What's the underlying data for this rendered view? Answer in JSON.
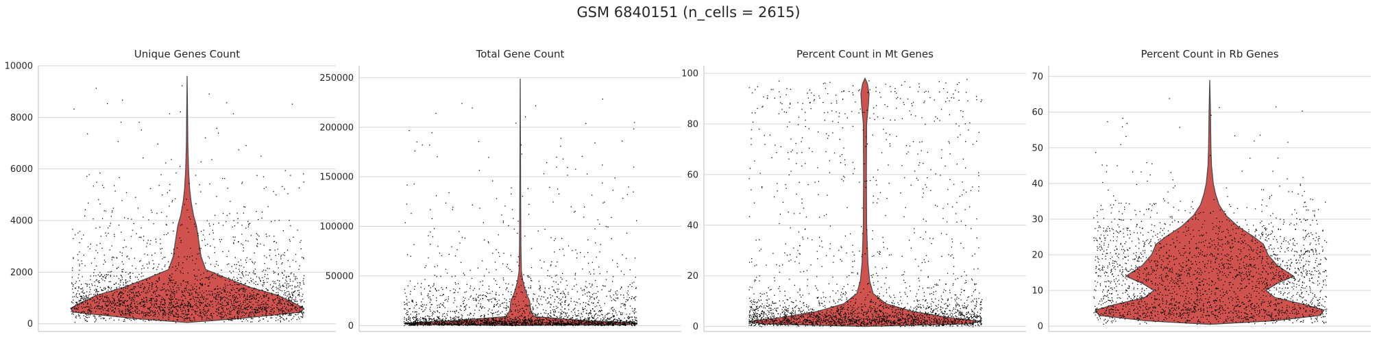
{
  "suptitle": "GSM 6840151 (n_cells = 2615)",
  "colors": {
    "violin_fill": "#d0524f",
    "violin_edge": "#4a4a4a",
    "points": "#000000",
    "grid": "#d4d4d4",
    "axis": "#bdbdbd"
  },
  "chart_data": [
    {
      "type": "violin",
      "title": "Unique Genes Count",
      "ylim": [
        -300,
        10000
      ],
      "yticks": [
        0,
        2000,
        4000,
        6000,
        8000,
        10000
      ],
      "grid": "horizontal",
      "n_points": 2615,
      "distribution": {
        "min": 50,
        "max": 9600,
        "density_profile": [
          [
            50,
            0.0
          ],
          [
            200,
            0.45
          ],
          [
            450,
            0.98
          ],
          [
            600,
            1.0
          ],
          [
            800,
            0.92
          ],
          [
            1100,
            0.78
          ],
          [
            1400,
            0.55
          ],
          [
            1800,
            0.32
          ],
          [
            2100,
            0.16
          ],
          [
            2600,
            0.12
          ],
          [
            3200,
            0.1
          ],
          [
            3800,
            0.08
          ],
          [
            4200,
            0.055
          ],
          [
            4700,
            0.035
          ],
          [
            5200,
            0.022
          ],
          [
            6000,
            0.012
          ],
          [
            7000,
            0.006
          ],
          [
            8000,
            0.004
          ],
          [
            9600,
            0.0
          ]
        ]
      }
    },
    {
      "type": "violin",
      "title": "Total Gene Count",
      "ylim": [
        -6000,
        262000
      ],
      "yticks": [
        0,
        50000,
        100000,
        150000,
        200000,
        250000
      ],
      "grid": "horizontal",
      "n_points": 2615,
      "distribution": {
        "min": 100,
        "max": 249000,
        "density_profile": [
          [
            100,
            0.0
          ],
          [
            1000,
            0.93
          ],
          [
            2500,
            1.0
          ],
          [
            5000,
            0.55
          ],
          [
            9000,
            0.12
          ],
          [
            15000,
            0.09
          ],
          [
            20000,
            0.085
          ],
          [
            25000,
            0.08
          ],
          [
            30000,
            0.06
          ],
          [
            37000,
            0.04
          ],
          [
            45000,
            0.022
          ],
          [
            55000,
            0.01
          ],
          [
            80000,
            0.006
          ],
          [
            120000,
            0.004
          ],
          [
            249000,
            0.0
          ]
        ]
      }
    },
    {
      "type": "violin",
      "title": "Percent Count in Mt Genes",
      "ylim": [
        -2,
        103
      ],
      "yticks": [
        0,
        20,
        40,
        60,
        80,
        100
      ],
      "grid": "horizontal",
      "n_points": 2615,
      "distribution": {
        "min": 0,
        "max": 98,
        "density_profile": [
          [
            0,
            0.0
          ],
          [
            1.0,
            0.88
          ],
          [
            2.0,
            1.0
          ],
          [
            3.5,
            0.72
          ],
          [
            6,
            0.4
          ],
          [
            9,
            0.18
          ],
          [
            13,
            0.07
          ],
          [
            18,
            0.04
          ],
          [
            25,
            0.025
          ],
          [
            40,
            0.014
          ],
          [
            60,
            0.012
          ],
          [
            80,
            0.014
          ],
          [
            88,
            0.03
          ],
          [
            92,
            0.035
          ],
          [
            96,
            0.02
          ],
          [
            98,
            0.0
          ]
        ]
      }
    },
    {
      "type": "violin",
      "title": "Percent Count in Rb Genes",
      "ylim": [
        -1.5,
        73
      ],
      "yticks": [
        0,
        10,
        20,
        30,
        40,
        50,
        60,
        70
      ],
      "grid": "horizontal",
      "n_points": 2615,
      "distribution": {
        "min": 0.5,
        "max": 69,
        "density_profile": [
          [
            0.5,
            0.0
          ],
          [
            1.5,
            0.55
          ],
          [
            3,
            0.95
          ],
          [
            4.5,
            0.98
          ],
          [
            6,
            0.82
          ],
          [
            8,
            0.56
          ],
          [
            10,
            0.48
          ],
          [
            12,
            0.58
          ],
          [
            14,
            0.72
          ],
          [
            17,
            0.58
          ],
          [
            20,
            0.5
          ],
          [
            23,
            0.46
          ],
          [
            25,
            0.38
          ],
          [
            28,
            0.24
          ],
          [
            31,
            0.14
          ],
          [
            34,
            0.08
          ],
          [
            37,
            0.05
          ],
          [
            40,
            0.03
          ],
          [
            45,
            0.015
          ],
          [
            50,
            0.01
          ],
          [
            60,
            0.006
          ],
          [
            69,
            0.0
          ]
        ]
      }
    }
  ]
}
